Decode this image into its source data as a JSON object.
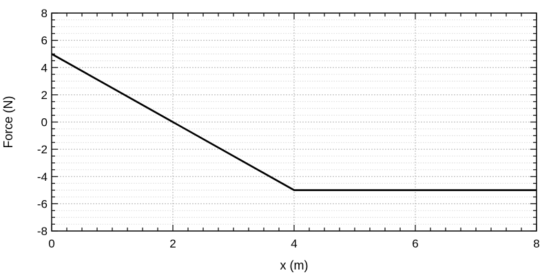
{
  "chart_data": {
    "type": "line",
    "title": "",
    "xlabel": "x (m)",
    "ylabel": "Force (N)",
    "xlim": [
      0,
      8
    ],
    "ylim": [
      -8,
      8
    ],
    "x_ticks": [
      0,
      2,
      4,
      6,
      8
    ],
    "y_ticks": [
      -8,
      -6,
      -4,
      -2,
      0,
      2,
      4,
      6,
      8
    ],
    "x_tick_labels": [
      "0",
      "2",
      "4",
      "6",
      "8"
    ],
    "y_tick_labels": [
      "-8",
      "-6",
      "-4",
      "-2",
      "0",
      "2",
      "4",
      "6",
      "8"
    ],
    "x_minor_step": 0.25,
    "y_minor_step": 0.5,
    "grid": true,
    "legend": "none",
    "series": [
      {
        "x": [
          0,
          4,
          8
        ],
        "y": [
          5,
          -5,
          -5
        ],
        "color": "#000000"
      }
    ]
  }
}
